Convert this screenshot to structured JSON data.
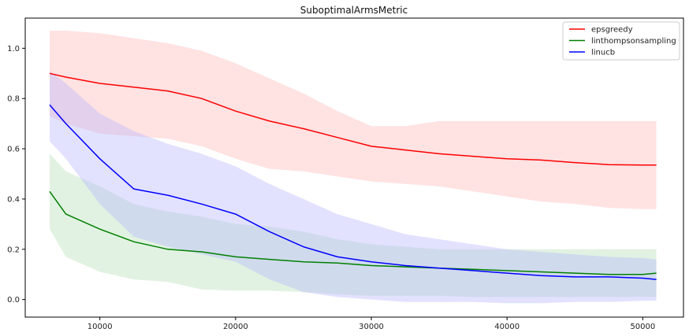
{
  "chart_data": {
    "type": "line",
    "title": "SuboptimalArmsMetric",
    "xlabel": "",
    "ylabel": "",
    "xlim": [
      4500,
      53000
    ],
    "ylim": [
      -0.07,
      1.12
    ],
    "xticks": [
      10000,
      20000,
      30000,
      40000,
      50000
    ],
    "xtick_labels": [
      "10000",
      "20000",
      "30000",
      "40000",
      "50000"
    ],
    "yticks": [
      0.0,
      0.2,
      0.4,
      0.6,
      0.8,
      1.0
    ],
    "ytick_labels": [
      "0.0",
      "0.2",
      "0.4",
      "0.6",
      "0.8",
      "1.0"
    ],
    "grid": false,
    "legend_position": "top-right",
    "x": [
      6300,
      7500,
      10000,
      12500,
      15000,
      17500,
      20000,
      22500,
      25000,
      27500,
      30000,
      32500,
      35000,
      37500,
      40000,
      42500,
      45000,
      47500,
      50000,
      51000
    ],
    "series": [
      {
        "name": "epsgreedy",
        "color": "#ff0000",
        "fill": "#ffb3b3",
        "values": [
          0.9,
          0.885,
          0.86,
          0.845,
          0.83,
          0.8,
          0.75,
          0.71,
          0.68,
          0.645,
          0.61,
          0.595,
          0.58,
          0.57,
          0.56,
          0.555,
          0.545,
          0.537,
          0.535,
          0.535
        ],
        "upper": [
          1.07,
          1.07,
          1.06,
          1.04,
          1.02,
          0.99,
          0.94,
          0.88,
          0.82,
          0.75,
          0.69,
          0.69,
          0.71,
          0.71,
          0.71,
          0.71,
          0.71,
          0.71,
          0.71,
          0.71
        ],
        "lower": [
          0.73,
          0.7,
          0.66,
          0.65,
          0.64,
          0.61,
          0.56,
          0.52,
          0.51,
          0.49,
          0.47,
          0.46,
          0.45,
          0.43,
          0.41,
          0.39,
          0.38,
          0.365,
          0.36,
          0.36
        ]
      },
      {
        "name": "linthompsonsampling",
        "color": "#008000",
        "fill": "#b3dcb3",
        "values": [
          0.43,
          0.34,
          0.28,
          0.23,
          0.2,
          0.19,
          0.17,
          0.16,
          0.15,
          0.145,
          0.135,
          0.13,
          0.125,
          0.12,
          0.115,
          0.11,
          0.105,
          0.1,
          0.1,
          0.105
        ],
        "upper": [
          0.58,
          0.51,
          0.45,
          0.38,
          0.35,
          0.33,
          0.3,
          0.29,
          0.27,
          0.24,
          0.22,
          0.21,
          0.2,
          0.2,
          0.2,
          0.2,
          0.2,
          0.2,
          0.2,
          0.2
        ],
        "lower": [
          0.28,
          0.17,
          0.11,
          0.08,
          0.07,
          0.04,
          0.035,
          0.035,
          0.03,
          0.02,
          0.015,
          0.015,
          0.015,
          0.01,
          0.01,
          0.01,
          0.01,
          0.01,
          0.01,
          0.01
        ]
      },
      {
        "name": "linucb",
        "color": "#0000ff",
        "fill": "#b3b3ff",
        "values": [
          0.775,
          0.7,
          0.56,
          0.44,
          0.415,
          0.38,
          0.34,
          0.27,
          0.21,
          0.17,
          0.15,
          0.135,
          0.125,
          0.115,
          0.105,
          0.095,
          0.09,
          0.09,
          0.085,
          0.08
        ],
        "upper": [
          0.91,
          0.86,
          0.74,
          0.67,
          0.62,
          0.58,
          0.53,
          0.46,
          0.4,
          0.34,
          0.3,
          0.26,
          0.24,
          0.22,
          0.2,
          0.19,
          0.18,
          0.17,
          0.165,
          0.16
        ],
        "lower": [
          0.63,
          0.56,
          0.38,
          0.25,
          0.21,
          0.18,
          0.15,
          0.08,
          0.03,
          0.01,
          0.0,
          -0.01,
          -0.01,
          -0.01,
          -0.015,
          -0.015,
          -0.01,
          -0.01,
          -0.005,
          -0.005
        ]
      }
    ]
  }
}
